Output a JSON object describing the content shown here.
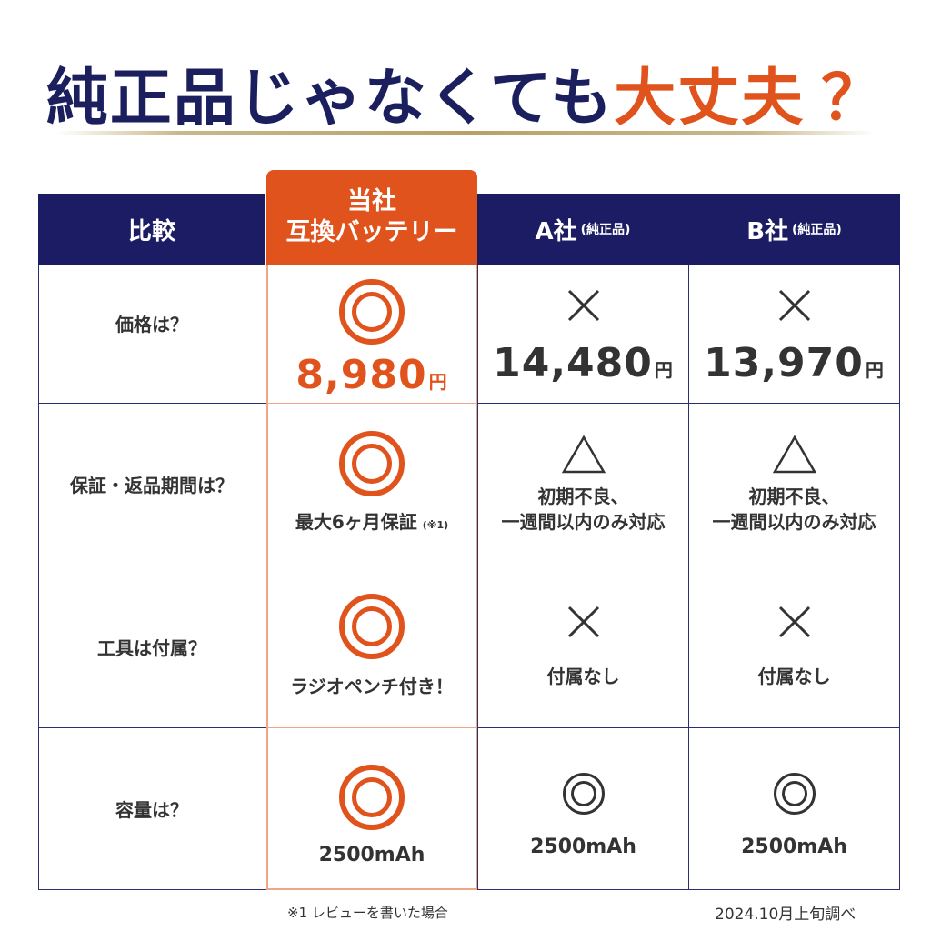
{
  "headline": {
    "part1": "純正品",
    "part2": "じゃなくても",
    "part3": "大丈夫",
    "part4": "？"
  },
  "colors": {
    "navy": "#1b1c63",
    "accent": "#e0531c",
    "text": "#333333"
  },
  "header": {
    "compare": "比較",
    "ours_line1": "当社",
    "ours_line2": "互換バッテリー",
    "a_name": "A社",
    "a_sub": "(純正品)",
    "b_name": "B社",
    "b_sub": "(純正品)"
  },
  "rows": [
    {
      "label": "価格は？",
      "ours": {
        "mark": "double-circle",
        "value": "8,980",
        "unit": "円"
      },
      "a": {
        "mark": "cross",
        "value": "14,480",
        "unit": "円"
      },
      "b": {
        "mark": "cross",
        "value": "13,970",
        "unit": "円"
      }
    },
    {
      "label": "保証・返品期間は？",
      "ours": {
        "mark": "double-circle",
        "text": "最大6ヶ月保証",
        "sup": "(※1)"
      },
      "a": {
        "mark": "triangle",
        "text_line1": "初期不良、",
        "text_line2": "一週間以内のみ対応"
      },
      "b": {
        "mark": "triangle",
        "text_line1": "初期不良、",
        "text_line2": "一週間以内のみ対応"
      }
    },
    {
      "label": "工具は付属？",
      "ours": {
        "mark": "double-circle",
        "text": "ラジオペンチ付き！"
      },
      "a": {
        "mark": "cross",
        "text": "付属なし"
      },
      "b": {
        "mark": "cross",
        "text": "付属なし"
      }
    },
    {
      "label": "容量は？",
      "ours": {
        "mark": "double-circle",
        "text": "2500mAh"
      },
      "a": {
        "mark": "double-circle",
        "text": "2500mAh"
      },
      "b": {
        "mark": "double-circle",
        "text": "2500mAh"
      }
    }
  ],
  "footnote1": "※1 レビューを書いた場合",
  "footnote2": "2024.10月上旬調べ"
}
